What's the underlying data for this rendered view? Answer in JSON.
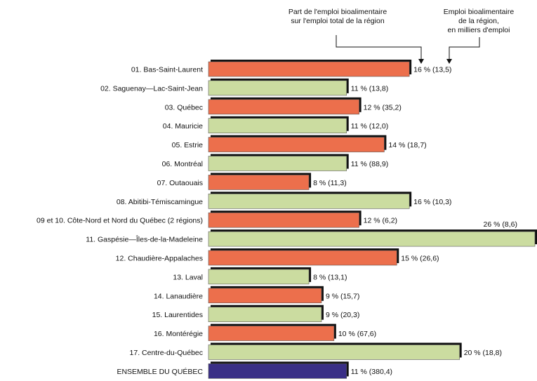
{
  "chart_data": {
    "type": "bar",
    "orientation": "horizontal",
    "annotations": {
      "left": "Part de l'emploi bioalimentaire\nsur l'emploi total de la région",
      "right": "Emploi bioalimentaire\nde la région,\nen milliers d'emploi"
    },
    "categories": [
      "01. Bas-Saint-Laurent",
      "02. Saguenay—Lac-Saint-Jean",
      "03. Québec",
      "04. Mauricie",
      "05. Estrie",
      "06. Montréal",
      "07. Outaouais",
      "08. Abitibi-Témiscamingue",
      "09 et 10. Côte-Nord et Nord du Québec (2 régions)",
      "11. Gaspésie—Îles-de-la-Madeleine",
      "12. Chaudière-Appalaches",
      "13. Laval",
      "14. Lanaudière",
      "15. Laurentides",
      "16. Montérégie",
      "17. Centre-du-Québec",
      "ENSEMBLE DU QUÉBEC"
    ],
    "values": [
      16,
      11,
      12,
      11,
      14,
      11,
      8,
      16,
      12,
      26,
      15,
      8,
      9,
      9,
      10,
      20,
      11
    ],
    "employment_thousands": [
      13.5,
      13.8,
      35.2,
      12.0,
      18.7,
      88.9,
      11.3,
      10.3,
      6.2,
      8.6,
      26.6,
      13.1,
      15.7,
      20.3,
      67.6,
      18.8,
      380.4
    ],
    "value_labels": [
      "16 % (13,5)",
      "11 % (13,8)",
      "12 % (35,2)",
      "11 % (12,0)",
      "14 % (18,7)",
      "11 % (88,9)",
      "8 % (11,3)",
      "16 % (10,3)",
      "12 % (6,2)",
      "26 % (8,6)",
      "15 % (26,6)",
      "8 % (13,1)",
      "9 % (15,7)",
      "9 % (20,3)",
      "10 % (67,6)",
      "20 % (18,8)",
      "11 % (380,4)"
    ],
    "colors": {
      "orange": "#ec6f4c",
      "green": "#cbdca0",
      "total": "#3a2f86",
      "shadow": "#111111"
    },
    "bar_colors": [
      "orange",
      "green",
      "orange",
      "green",
      "orange",
      "green",
      "orange",
      "green",
      "orange",
      "green",
      "orange",
      "green",
      "orange",
      "green",
      "orange",
      "green",
      "total"
    ],
    "xlim": [
      0,
      26
    ],
    "grid": false,
    "legend": "none"
  }
}
